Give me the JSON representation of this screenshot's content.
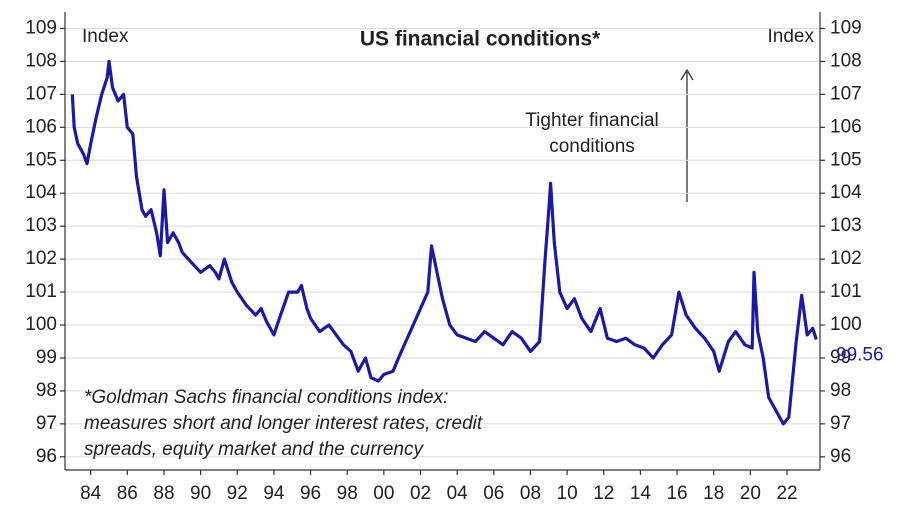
{
  "chart_data": {
    "type": "line",
    "title": "US financial conditions*",
    "annotations": [
      "Index",
      "Index",
      "Tighter financial conditions",
      "*Goldman Sachs financial conditions index: measures short and longer interest rates, credit spreads, equity market and the currency"
    ],
    "x": [
      1983.0,
      1983.1,
      1983.3,
      1983.6,
      1983.8,
      1984.0,
      1984.3,
      1984.6,
      1984.9,
      1985.0,
      1985.2,
      1985.5,
      1985.8,
      1986.0,
      1986.3,
      1986.5,
      1986.8,
      1987.0,
      1987.3,
      1987.6,
      1987.8,
      1988.0,
      1988.2,
      1988.5,
      1988.8,
      1989.0,
      1989.5,
      1990.0,
      1990.5,
      1990.8,
      1991.0,
      1991.3,
      1991.7,
      1992.0,
      1992.5,
      1993.0,
      1993.3,
      1993.6,
      1994.0,
      1994.3,
      1994.8,
      1995.3,
      1995.5,
      1995.8,
      1996.0,
      1996.5,
      1997.0,
      1997.4,
      1997.8,
      1998.2,
      1998.6,
      1999.0,
      1999.3,
      1999.7,
      2000.0,
      2000.5,
      2000.8,
      2001.2,
      2001.6,
      2002.0,
      2002.4,
      2002.6,
      2002.9,
      2003.2,
      2003.6,
      2004.0,
      2004.5,
      2005.0,
      2005.5,
      2006.0,
      2006.5,
      2007.0,
      2007.5,
      2008.0,
      2008.5,
      2008.8,
      2009.0,
      2009.1,
      2009.3,
      2009.6,
      2010.0,
      2010.4,
      2010.8,
      2011.3,
      2011.8,
      2012.2,
      2012.7,
      2013.2,
      2013.7,
      2014.2,
      2014.7,
      2015.2,
      2015.7,
      2016.1,
      2016.5,
      2017.0,
      2017.5,
      2018.0,
      2018.3,
      2018.8,
      2019.2,
      2019.7,
      2020.1,
      2020.2,
      2020.4,
      2020.7,
      2021.0,
      2021.4,
      2021.8,
      2022.1,
      2022.5,
      2022.8,
      2023.1,
      2023.4,
      2023.6
    ],
    "series": [
      {
        "name": "Goldman Sachs financial conditions index",
        "color": "#1a1aa6",
        "values": [
          107.0,
          106.0,
          105.5,
          105.2,
          104.9,
          105.5,
          106.3,
          107.0,
          107.5,
          108.0,
          107.2,
          106.8,
          107.0,
          106.0,
          105.8,
          104.5,
          103.5,
          103.3,
          103.5,
          102.8,
          102.1,
          104.1,
          102.5,
          102.8,
          102.5,
          102.2,
          101.9,
          101.6,
          101.8,
          101.6,
          101.4,
          102.0,
          101.3,
          101.0,
          100.6,
          100.3,
          100.5,
          100.1,
          99.7,
          100.2,
          101.0,
          101.0,
          101.2,
          100.5,
          100.2,
          99.8,
          100.0,
          99.7,
          99.4,
          99.2,
          98.6,
          99.0,
          98.4,
          98.3,
          98.5,
          98.6,
          99.0,
          99.5,
          100.0,
          100.5,
          101.0,
          102.4,
          101.6,
          100.8,
          100.0,
          99.7,
          99.6,
          99.5,
          99.8,
          99.6,
          99.4,
          99.8,
          99.6,
          99.2,
          99.5,
          102.0,
          103.5,
          104.3,
          102.5,
          101.0,
          100.5,
          100.8,
          100.2,
          99.8,
          100.5,
          99.6,
          99.5,
          99.6,
          99.4,
          99.3,
          99.0,
          99.4,
          99.7,
          101.0,
          100.3,
          99.9,
          99.6,
          99.2,
          98.6,
          99.5,
          99.8,
          99.4,
          99.3,
          101.6,
          99.8,
          99.0,
          97.8,
          97.4,
          97.0,
          97.2,
          99.5,
          100.9,
          99.7,
          99.9,
          99.56
        ]
      }
    ],
    "xlim": [
      1982.6,
      2023.8
    ],
    "xticks": [
      {
        "value": 1984,
        "label": "84"
      },
      {
        "value": 1986,
        "label": "86"
      },
      {
        "value": 1988,
        "label": "88"
      },
      {
        "value": 1990,
        "label": "90"
      },
      {
        "value": 1992,
        "label": "92"
      },
      {
        "value": 1994,
        "label": "94"
      },
      {
        "value": 1996,
        "label": "96"
      },
      {
        "value": 1998,
        "label": "98"
      },
      {
        "value": 2000,
        "label": "00"
      },
      {
        "value": 2002,
        "label": "02"
      },
      {
        "value": 2004,
        "label": "04"
      },
      {
        "value": 2006,
        "label": "06"
      },
      {
        "value": 2008,
        "label": "08"
      },
      {
        "value": 2010,
        "label": "10"
      },
      {
        "value": 2012,
        "label": "12"
      },
      {
        "value": 2014,
        "label": "14"
      },
      {
        "value": 2016,
        "label": "16"
      },
      {
        "value": 2018,
        "label": "18"
      },
      {
        "value": 2020,
        "label": "20"
      },
      {
        "value": 2022,
        "label": "22"
      }
    ],
    "ylim": [
      95.6,
      109.5
    ],
    "yticks": [
      96,
      97,
      98,
      99,
      100,
      101,
      102,
      103,
      104,
      105,
      106,
      107,
      108,
      109
    ],
    "y2lim": [
      95.6,
      109.5
    ],
    "y2ticks": [
      96,
      97,
      98,
      99,
      100,
      101,
      102,
      103,
      104,
      105,
      106,
      107,
      108,
      109
    ],
    "grid": true
  }
}
